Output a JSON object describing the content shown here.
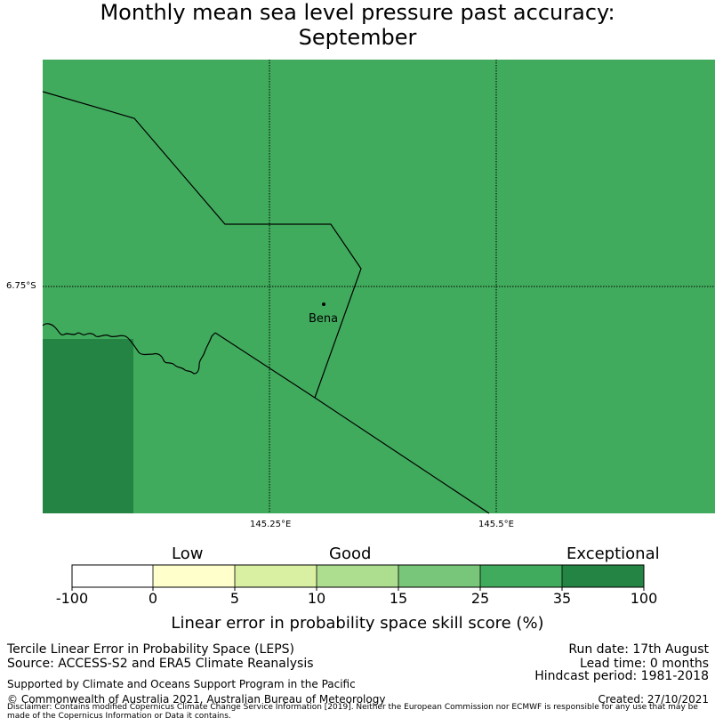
{
  "title": {
    "line1": "Monthly mean sea level pressure past accuracy:",
    "line2": "September"
  },
  "map": {
    "lon_labels": [
      "145.25°E",
      "145.5°E"
    ],
    "lat_labels": [
      "6.75°S"
    ],
    "place": "Bena",
    "fill_colors": {
      "good_35": "#41ab5d",
      "exceptional_100": "#238443"
    }
  },
  "colorbar": {
    "category_labels": [
      "Low",
      "Good",
      "Exceptional"
    ],
    "ticks": [
      "-100",
      "0",
      "5",
      "10",
      "15",
      "25",
      "35",
      "100"
    ],
    "colors": [
      "#ffffff",
      "#ffffcc",
      "#d9f0a3",
      "#addd8e",
      "#78c679",
      "#41ab5d",
      "#238443"
    ],
    "title": "Linear error in probability space skill score (%)"
  },
  "footer": {
    "left": [
      "Tercile Linear Error in Probability Space (LEPS)",
      "Source: ACCESS-S2 and ERA5 Climate Reanalysis",
      "Supported by Climate and Oceans Support Program in the Pacific",
      "© Commonwealth of Australia 2021, Australian Bureau of Meteorology"
    ],
    "right": [
      "Run date: 17th August",
      "Lead time: 0 months",
      "Hindcast period: 1981-2018",
      "Created: 27/10/2021"
    ],
    "disclaimer": "Disclaimer: Contains modified Copernicus Climate Change Service Information [2019]. Neither the European Commission nor ECMWF is responsible for any use that may be made of the Copernicus Information or Data it contains."
  }
}
